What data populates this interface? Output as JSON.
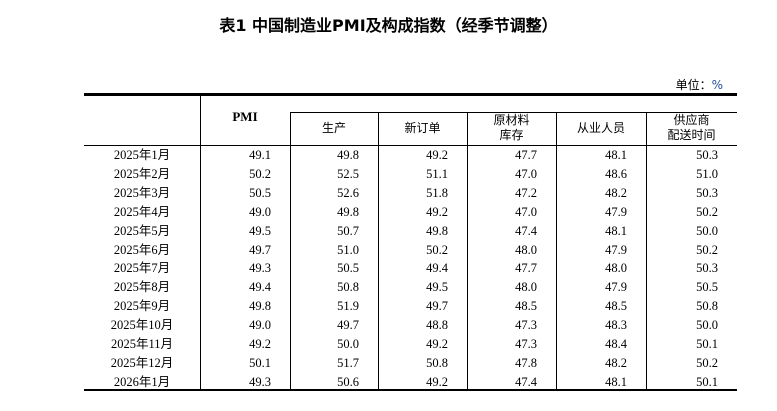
{
  "title": "表1 中国制造业PMI及构成指数（经季节调整）",
  "unit_label": "单位：",
  "unit_value": "%",
  "columns": [
    "PMI",
    "生产",
    "新订单",
    "原材料\n库存",
    "从业人员",
    "供应商\n配送时间"
  ],
  "column_lines": [
    [
      "PMI"
    ],
    [
      "生产"
    ],
    [
      "新订单"
    ],
    [
      "原材料",
      "库存"
    ],
    [
      "从业人员"
    ],
    [
      "供应商",
      "配送时间"
    ]
  ],
  "rows": [
    {
      "month": "2025年1月",
      "values": [
        "49.1",
        "49.8",
        "49.2",
        "47.7",
        "48.1",
        "50.3"
      ]
    },
    {
      "month": "2025年2月",
      "values": [
        "50.2",
        "52.5",
        "51.1",
        "47.0",
        "48.6",
        "51.0"
      ]
    },
    {
      "month": "2025年3月",
      "values": [
        "50.5",
        "52.6",
        "51.8",
        "47.2",
        "48.2",
        "50.3"
      ]
    },
    {
      "month": "2025年4月",
      "values": [
        "49.0",
        "49.8",
        "49.2",
        "47.0",
        "47.9",
        "50.2"
      ]
    },
    {
      "month": "2025年5月",
      "values": [
        "49.5",
        "50.7",
        "49.8",
        "47.4",
        "48.1",
        "50.0"
      ]
    },
    {
      "month": "2025年6月",
      "values": [
        "49.7",
        "51.0",
        "50.2",
        "48.0",
        "47.9",
        "50.2"
      ]
    },
    {
      "month": "2025年7月",
      "values": [
        "49.3",
        "50.5",
        "49.4",
        "47.7",
        "48.0",
        "50.3"
      ]
    },
    {
      "month": "2025年8月",
      "values": [
        "49.4",
        "50.8",
        "49.5",
        "48.0",
        "47.9",
        "50.5"
      ]
    },
    {
      "month": "2025年9月",
      "values": [
        "49.8",
        "51.9",
        "49.7",
        "48.5",
        "48.5",
        "50.8"
      ]
    },
    {
      "month": "2025年10月",
      "values": [
        "49.0",
        "49.7",
        "48.8",
        "47.3",
        "48.3",
        "50.0"
      ]
    },
    {
      "month": "2025年11月",
      "values": [
        "49.2",
        "50.0",
        "49.2",
        "47.3",
        "48.4",
        "50.1"
      ]
    },
    {
      "month": "2025年12月",
      "values": [
        "50.1",
        "51.7",
        "50.8",
        "47.8",
        "48.2",
        "50.2"
      ]
    },
    {
      "month": "2026年1月",
      "values": [
        "49.3",
        "50.6",
        "49.2",
        "47.4",
        "48.1",
        "50.1"
      ]
    }
  ]
}
